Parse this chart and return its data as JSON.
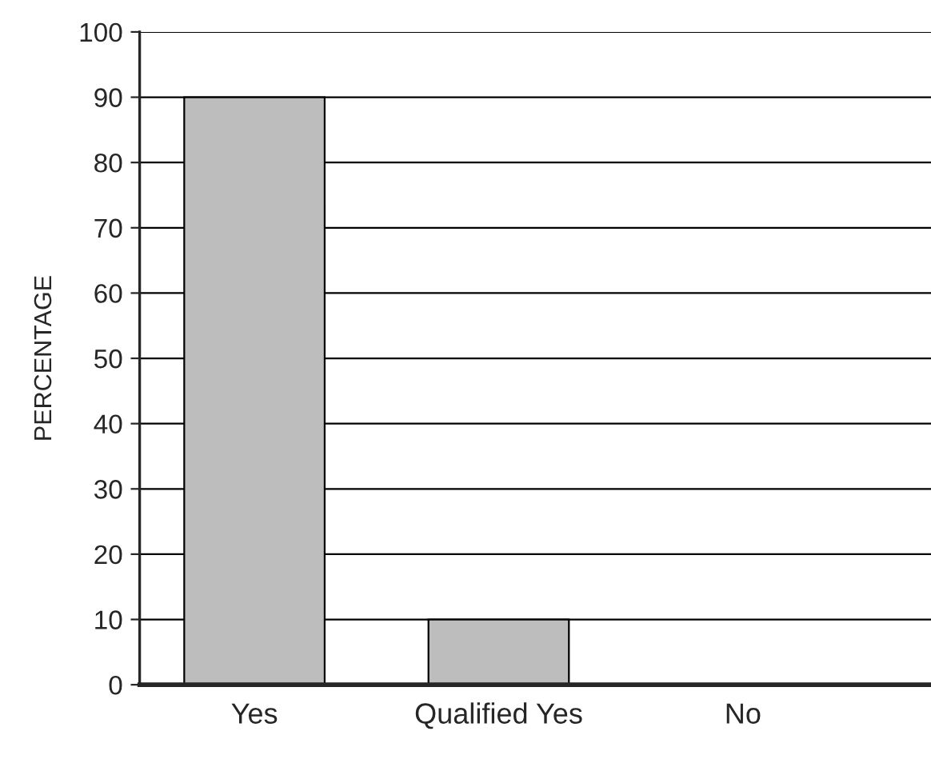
{
  "chart_data": {
    "type": "bar",
    "ylabel": "PERCENTAGE",
    "categories": [
      "Yes",
      "Qualified Yes",
      "No"
    ],
    "values": [
      90,
      10,
      0
    ],
    "color": "#bdbdbd",
    "ylim": [
      0,
      100
    ],
    "yticks": [
      0,
      10,
      20,
      30,
      40,
      50,
      60,
      70,
      80,
      90,
      100
    ],
    "grid": "y",
    "legend": false
  }
}
